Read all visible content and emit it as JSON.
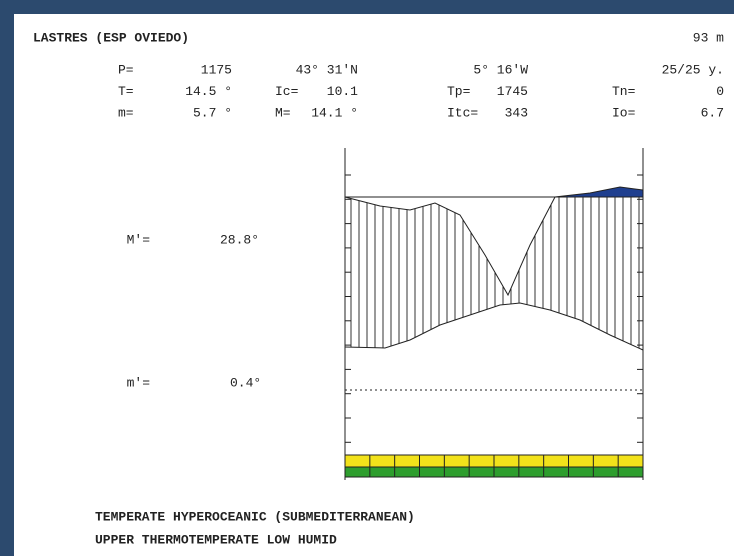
{
  "header": {
    "station": "LASTRES (ESP OVIEDO)",
    "altitude": "93 m"
  },
  "stats": [
    [
      {
        "label": "P=",
        "value": "1175"
      },
      {
        "label": "",
        "value": "43° 31'N"
      },
      {
        "label": "",
        "value": "5° 16'W"
      },
      {
        "label": "",
        "value": "25/25 y."
      }
    ],
    [
      {
        "label": "T=",
        "value": "14.5 °"
      },
      {
        "label": "Ic=",
        "value": "10.1"
      },
      {
        "label": "Tp=",
        "value": "1745"
      },
      {
        "label": "Tn=",
        "value": "0"
      }
    ],
    [
      {
        "label": "m=",
        "value": "5.7 °"
      },
      {
        "label": "M=",
        "value": "14.1 °"
      },
      {
        "label": "Itc=",
        "value": "343"
      },
      {
        "label": "Io=",
        "value": "6.7"
      }
    ]
  ],
  "diagram": {
    "max_label": "M'=",
    "max_value": "28.8°",
    "min_label": "m'=",
    "min_value": "0.4°"
  },
  "footer": [
    "TEMPERATE HYPEROCEANIC (SUBMEDITERRANEAN)",
    "UPPER THERMOTEMPERATE LOW HUMID"
  ]
}
